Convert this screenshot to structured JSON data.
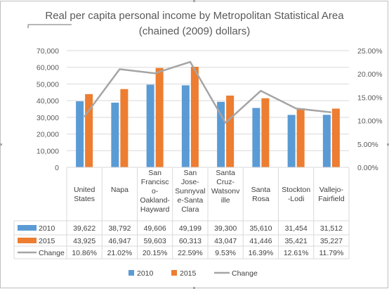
{
  "chart_data": {
    "type": "bar",
    "title_lines": [
      "Real per capita personal income by Metropolitan Statistical Area",
      "(chained (2009) dollars)"
    ],
    "categories": [
      [
        "United",
        "States"
      ],
      [
        "Napa"
      ],
      [
        "San",
        "Francisc",
        "o-",
        "Oakland-",
        "Hayward"
      ],
      [
        "San",
        "Jose-",
        "Sunnyval",
        "e-Santa",
        "Clara"
      ],
      [
        "Santa",
        "Cruz-",
        "Watsonv",
        "ille"
      ],
      [
        "Santa",
        "Rosa"
      ],
      [
        "Stockton",
        "-Lodi"
      ],
      [
        "Vallejo-",
        "Fairfield"
      ]
    ],
    "series": [
      {
        "name": "2010",
        "color": "#5b9bd5",
        "axis": "left",
        "values": [
          39622,
          38792,
          49606,
          49199,
          39300,
          35610,
          31454,
          31512
        ],
        "labels": [
          "39,622",
          "38,792",
          "49,606",
          "49,199",
          "39,300",
          "35,610",
          "31,454",
          "31,512"
        ]
      },
      {
        "name": "2015",
        "color": "#ed7d31",
        "axis": "left",
        "values": [
          43925,
          46947,
          59603,
          60313,
          43047,
          41446,
          35421,
          35227
        ],
        "labels": [
          "43,925",
          "46,947",
          "59,603",
          "60,313",
          "43,047",
          "41,446",
          "35,421",
          "35,227"
        ]
      },
      {
        "name": "Change",
        "color": "#a5a5a5",
        "axis": "right",
        "type": "line",
        "values": [
          10.86,
          21.02,
          20.15,
          22.59,
          9.53,
          16.39,
          12.61,
          11.79
        ],
        "labels": [
          "10.86%",
          "21.02%",
          "20.15%",
          "22.59%",
          "9.53%",
          "16.39%",
          "12.61%",
          "11.79%"
        ]
      }
    ],
    "y_left": {
      "min": 0,
      "max": 70000,
      "ticks": [
        "0",
        "10,000",
        "20,000",
        "30,000",
        "40,000",
        "50,000",
        "60,000",
        "70,000"
      ]
    },
    "y_right": {
      "min": 0,
      "max": 25,
      "ticks": [
        "0.00%",
        "5.00%",
        "10.00%",
        "15.00%",
        "20.00%",
        "25.00%"
      ]
    },
    "grid": true,
    "legend": "bottom",
    "data_table": true
  }
}
